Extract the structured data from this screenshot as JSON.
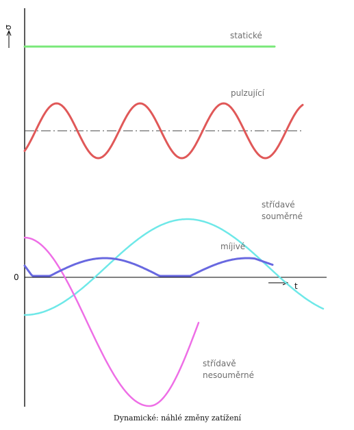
{
  "diagram": {
    "caption": "Dynamické: náhlé změny zatížení",
    "y_axis_symbol": "σ",
    "x_axis_symbol": "t",
    "origin_label": "0",
    "curves": [
      {
        "id": "static",
        "label_lines": [
          "statické"
        ],
        "color": "#78e878"
      },
      {
        "id": "pulsating",
        "label_lines": [
          "pulzující"
        ],
        "color": "#e05858"
      },
      {
        "id": "sym",
        "label_lines": [
          "střídavé",
          "souměrné"
        ],
        "color": "#6ee8e8"
      },
      {
        "id": "transient",
        "label_lines": [
          "míjivé"
        ],
        "color": "#6868e0"
      },
      {
        "id": "asym",
        "label_lines": [
          "střídavě",
          "nesouměrné"
        ],
        "color": "#ee6ee6"
      }
    ],
    "midline_color": "#444444"
  }
}
